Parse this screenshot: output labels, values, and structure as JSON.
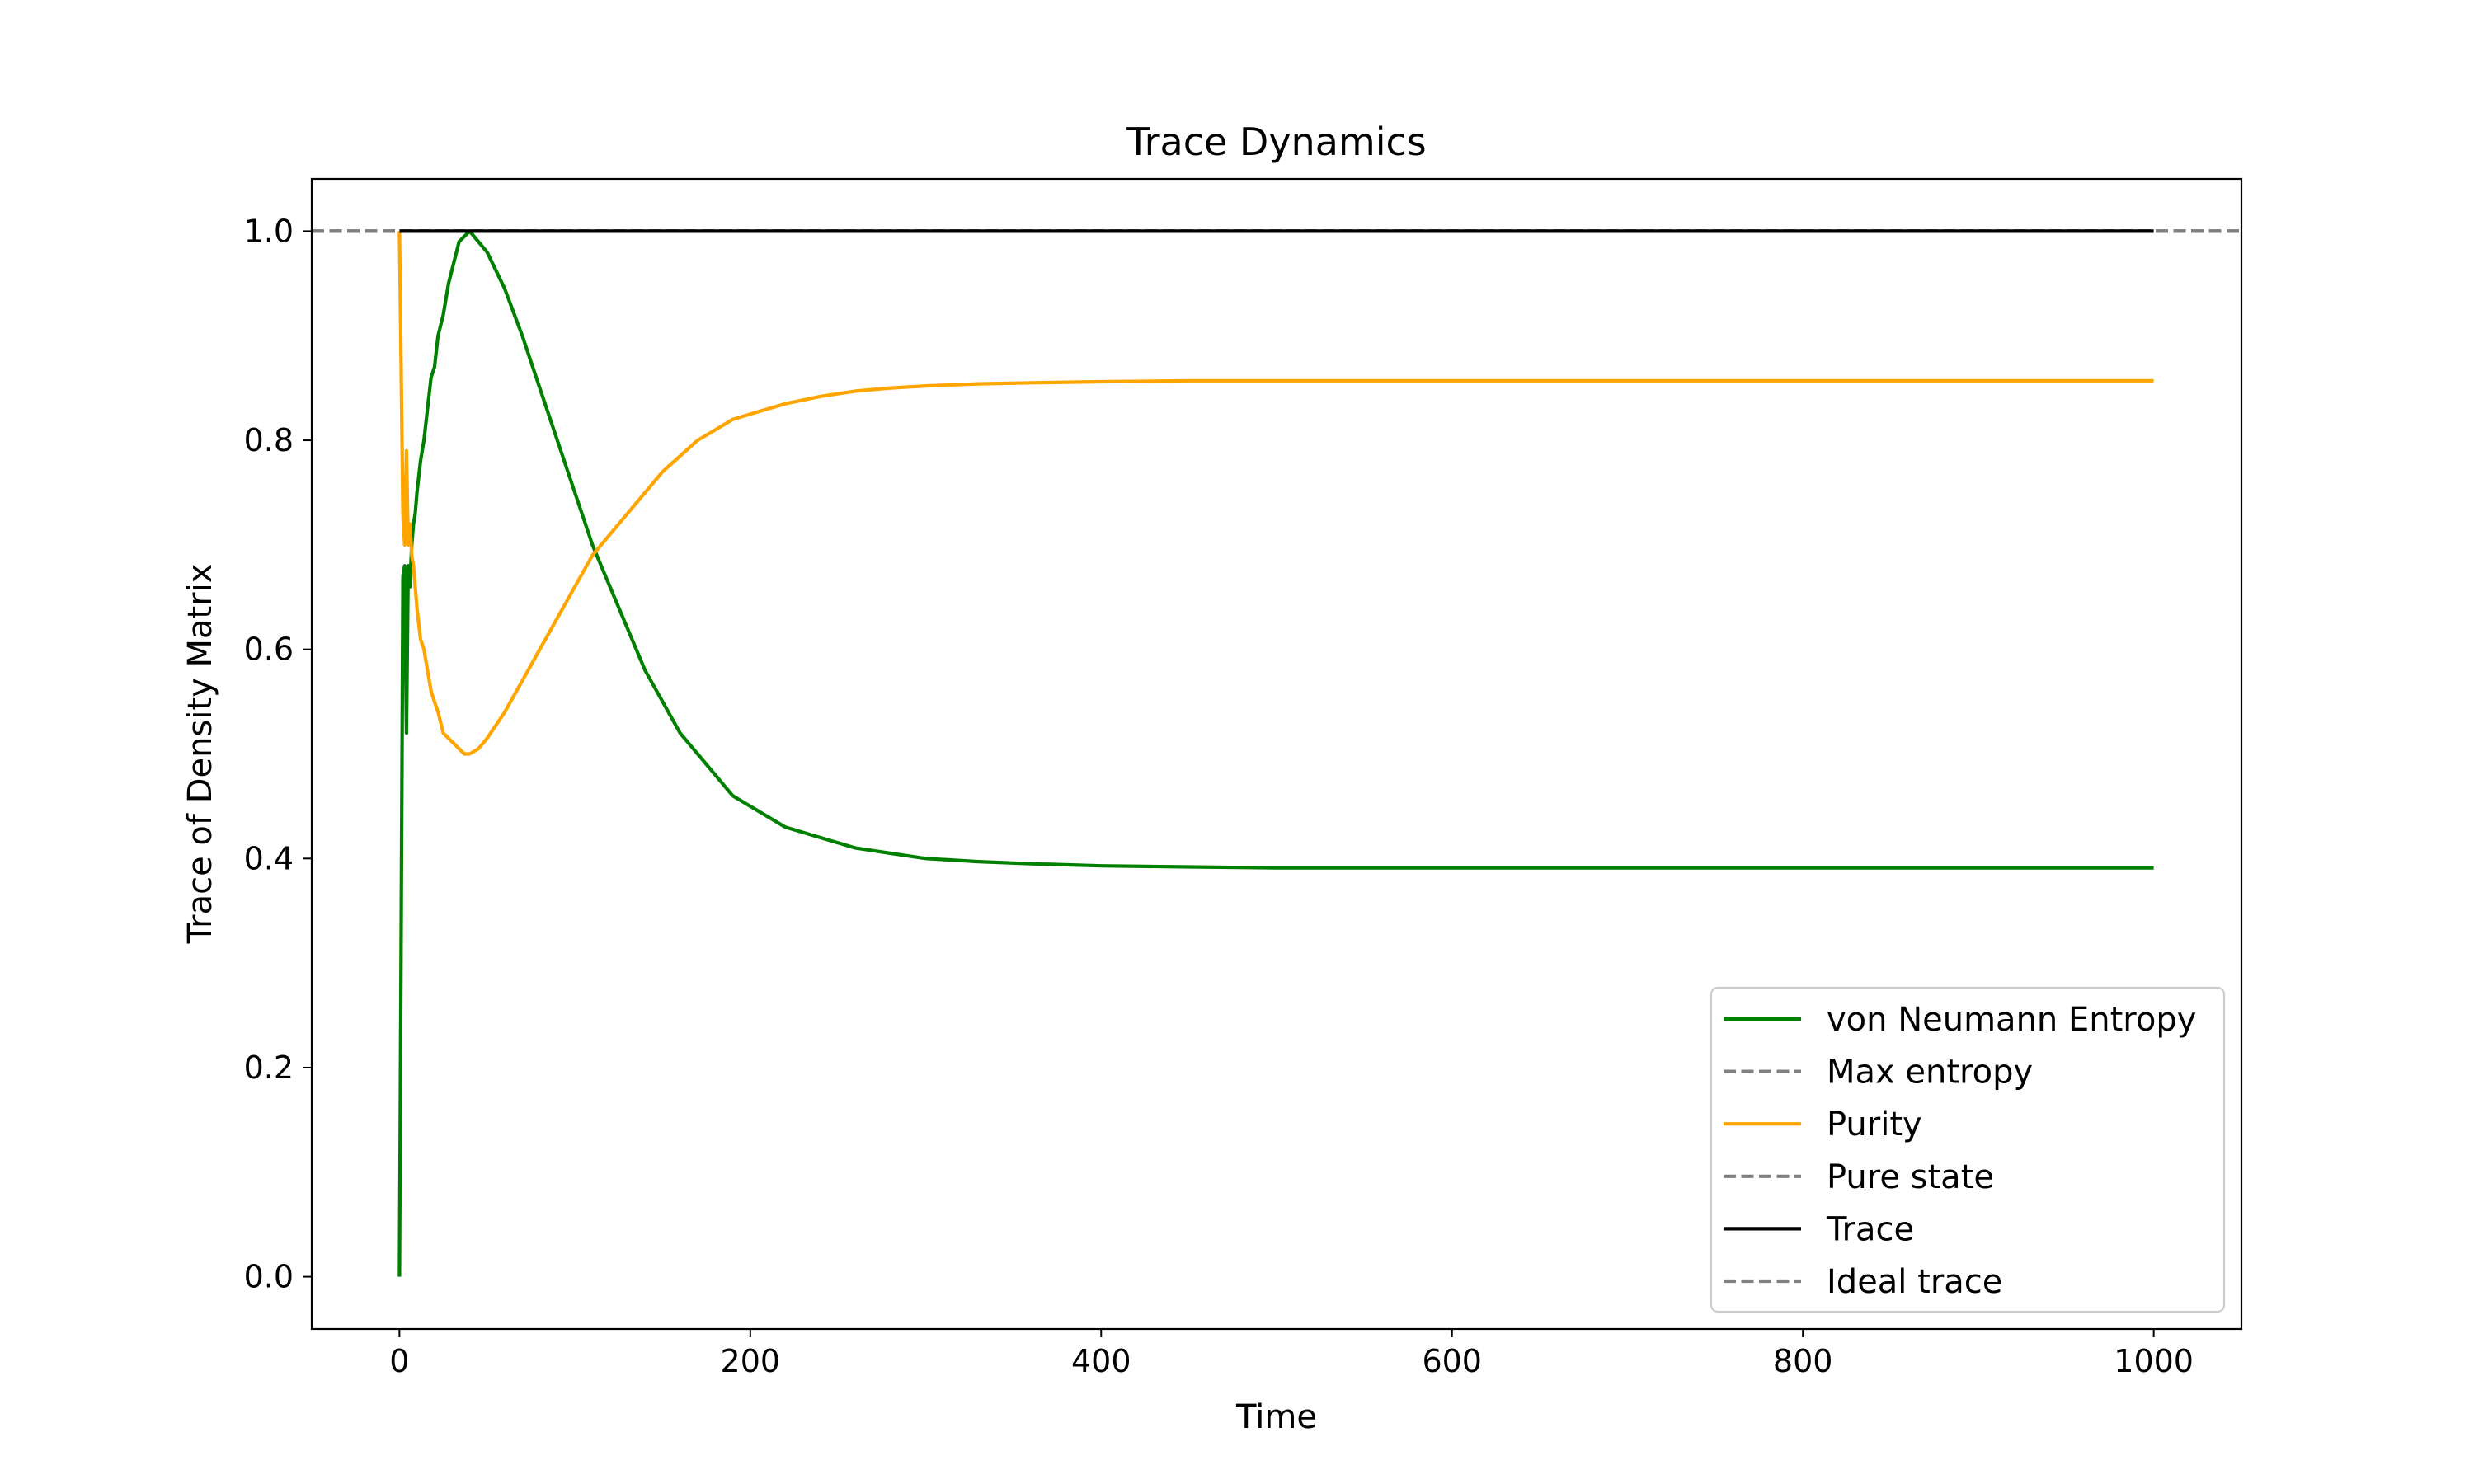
{
  "chart_data": {
    "type": "line",
    "title": "Trace Dynamics",
    "xlabel": "Time",
    "ylabel": "Trace of Density Matrix",
    "xlim": [
      -50,
      1050
    ],
    "ylim": [
      -0.05,
      1.05
    ],
    "xticks": [
      0,
      200,
      400,
      600,
      800,
      1000
    ],
    "yticks": [
      0.0,
      0.2,
      0.4,
      0.6,
      0.8,
      1.0
    ],
    "xtick_labels": [
      "0",
      "200",
      "400",
      "600",
      "800",
      "1000"
    ],
    "ytick_labels": [
      "0.0",
      "0.2",
      "0.4",
      "0.6",
      "0.8",
      "1.0"
    ],
    "grid": false,
    "legend_position": "lower-right",
    "series": [
      {
        "name": "von Neumann Entropy",
        "color": "#008000",
        "style": "solid",
        "x": [
          0,
          2,
          3,
          4,
          5,
          6,
          7,
          8,
          9,
          10,
          12,
          14,
          16,
          18,
          20,
          22,
          25,
          28,
          31,
          34,
          37,
          40,
          45,
          50,
          60,
          70,
          80,
          90,
          100,
          110,
          120,
          130,
          140,
          150,
          160,
          170,
          180,
          190,
          200,
          220,
          240,
          260,
          280,
          300,
          330,
          360,
          400,
          450,
          500,
          600,
          700,
          800,
          900,
          1000
        ],
        "y": [
          0.0,
          0.67,
          0.68,
          0.52,
          0.68,
          0.66,
          0.7,
          0.72,
          0.73,
          0.75,
          0.78,
          0.8,
          0.83,
          0.86,
          0.87,
          0.9,
          0.92,
          0.95,
          0.97,
          0.99,
          0.995,
          1.0,
          0.99,
          0.98,
          0.945,
          0.9,
          0.85,
          0.8,
          0.75,
          0.7,
          0.66,
          0.62,
          0.58,
          0.55,
          0.52,
          0.5,
          0.48,
          0.46,
          0.45,
          0.43,
          0.42,
          0.41,
          0.405,
          0.4,
          0.397,
          0.395,
          0.393,
          0.392,
          0.391,
          0.391,
          0.391,
          0.391,
          0.391,
          0.391
        ]
      },
      {
        "name": "Max entropy",
        "color": "#808080",
        "style": "dashed",
        "x": [
          -50,
          1050
        ],
        "y": [
          1.0,
          1.0
        ]
      },
      {
        "name": "Purity",
        "color": "#FFA500",
        "style": "solid",
        "x": [
          0,
          2,
          3,
          4,
          5,
          6,
          7,
          8,
          9,
          10,
          12,
          14,
          16,
          18,
          20,
          22,
          25,
          28,
          31,
          34,
          37,
          40,
          45,
          50,
          60,
          70,
          80,
          90,
          100,
          110,
          120,
          130,
          140,
          150,
          160,
          170,
          180,
          190,
          200,
          220,
          240,
          260,
          280,
          300,
          330,
          360,
          400,
          450,
          500,
          600,
          700,
          800,
          900,
          1000
        ],
        "y": [
          1.0,
          0.73,
          0.7,
          0.79,
          0.7,
          0.72,
          0.69,
          0.68,
          0.66,
          0.64,
          0.61,
          0.6,
          0.58,
          0.56,
          0.55,
          0.54,
          0.52,
          0.515,
          0.51,
          0.505,
          0.5,
          0.5,
          0.505,
          0.515,
          0.54,
          0.57,
          0.6,
          0.63,
          0.66,
          0.69,
          0.71,
          0.73,
          0.75,
          0.77,
          0.785,
          0.8,
          0.81,
          0.82,
          0.825,
          0.835,
          0.842,
          0.847,
          0.85,
          0.852,
          0.854,
          0.855,
          0.856,
          0.857,
          0.857,
          0.857,
          0.857,
          0.857,
          0.857,
          0.857
        ]
      },
      {
        "name": "Pure state",
        "color": "#808080",
        "style": "dashed",
        "x": [
          -50,
          1050
        ],
        "y": [
          1.0,
          1.0
        ]
      },
      {
        "name": "Trace",
        "color": "#000000",
        "style": "solid",
        "x": [
          0,
          1000
        ],
        "y": [
          1.0,
          1.0
        ]
      },
      {
        "name": "Ideal trace",
        "color": "#808080",
        "style": "dashed",
        "x": [
          -50,
          1050
        ],
        "y": [
          1.0,
          1.0
        ]
      }
    ]
  }
}
